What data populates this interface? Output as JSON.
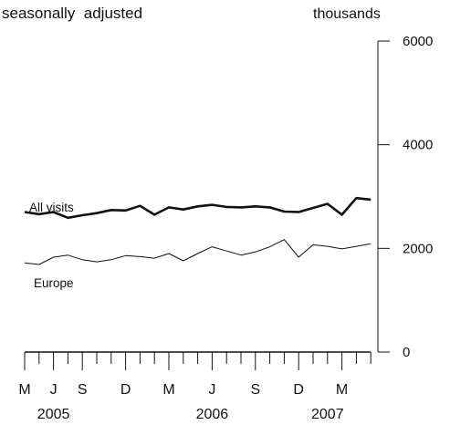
{
  "header": {
    "subtitle": "seasonally  adjusted",
    "units": "thousands"
  },
  "chart_data": {
    "type": "line",
    "title": "",
    "subtitle": "seasonally  adjusted",
    "ylabel": "thousands",
    "xlabel": "",
    "ylim": [
      0,
      6000
    ],
    "yticks": [
      0,
      2000,
      4000,
      6000
    ],
    "grid": false,
    "x": [
      "2005-05",
      "2005-06",
      "2005-07",
      "2005-08",
      "2005-09",
      "2005-10",
      "2005-11",
      "2005-12",
      "2006-01",
      "2006-02",
      "2006-03",
      "2006-04",
      "2006-05",
      "2006-06",
      "2006-07",
      "2006-08",
      "2006-09",
      "2006-10",
      "2006-11",
      "2006-12",
      "2007-01",
      "2007-02",
      "2007-03",
      "2007-04",
      "2007-05"
    ],
    "month_labels": [
      {
        "month": "2005-05",
        "label": "M"
      },
      {
        "month": "2005-07",
        "label": "J"
      },
      {
        "month": "2005-09",
        "label": "S"
      },
      {
        "month": "2005-12",
        "label": "D"
      },
      {
        "month": "2006-03",
        "label": "M"
      },
      {
        "month": "2006-06",
        "label": "J"
      },
      {
        "month": "2006-09",
        "label": "S"
      },
      {
        "month": "2006-12",
        "label": "D"
      },
      {
        "month": "2007-03",
        "label": "M"
      }
    ],
    "year_labels": [
      {
        "month": "2005-07",
        "label": "2005"
      },
      {
        "month": "2006-06",
        "label": "2006"
      },
      {
        "month": "2007-02",
        "label": "2007"
      }
    ],
    "series": [
      {
        "name": "All visits",
        "color": "#111111",
        "values": [
          2700,
          2660,
          2700,
          2590,
          2640,
          2680,
          2740,
          2730,
          2820,
          2650,
          2790,
          2750,
          2810,
          2840,
          2800,
          2790,
          2810,
          2790,
          2710,
          2700,
          2780,
          2860,
          2650,
          2970,
          2940
        ]
      },
      {
        "name": "Europe",
        "color": "#111111",
        "values": [
          1720,
          1690,
          1830,
          1870,
          1780,
          1740,
          1780,
          1860,
          1840,
          1810,
          1900,
          1760,
          1900,
          2030,
          1950,
          1870,
          1930,
          2030,
          2170,
          1830,
          2070,
          2040,
          1990,
          2040,
          2090
        ]
      }
    ]
  }
}
